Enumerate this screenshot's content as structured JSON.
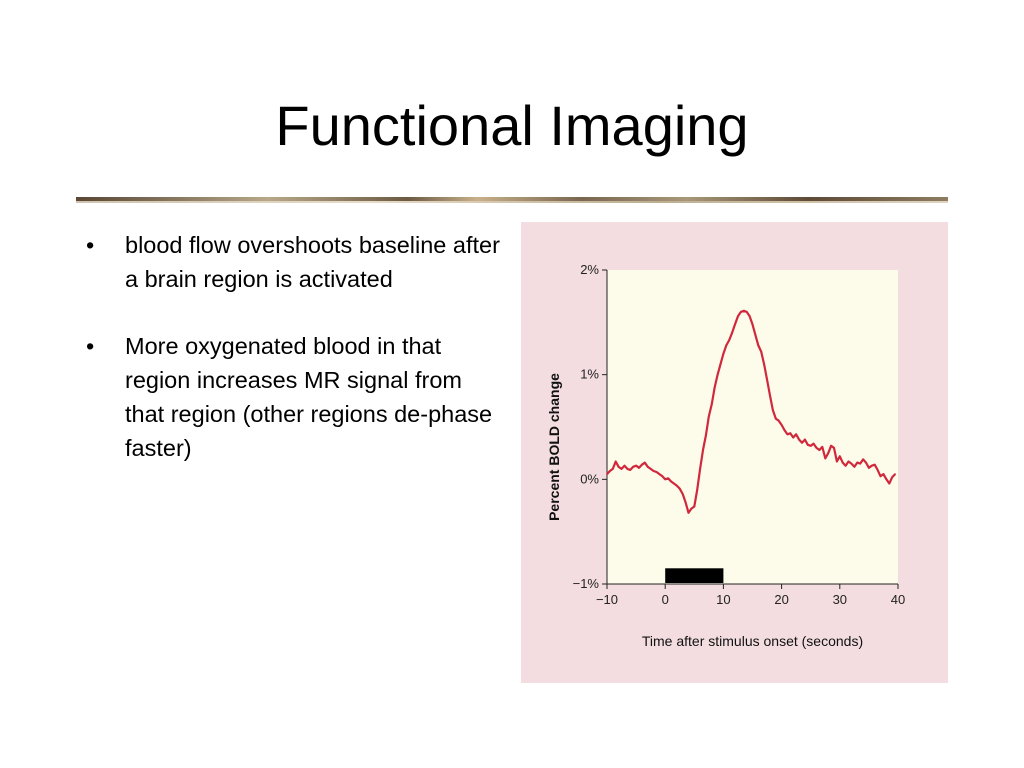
{
  "slide": {
    "title": "Functional Imaging",
    "bullets": [
      "blood flow overshoots baseline after a brain region is activated",
      "More oxygenated blood in that region increases MR signal from that region (other regions de-phase faster)"
    ],
    "bullet_glyph": "•"
  },
  "colors": {
    "line": "#d0283c",
    "plot_background": "#fdfbea",
    "panel_background": "#f3dde1",
    "stimulus_bar": "#000000"
  },
  "chart_data": {
    "type": "line",
    "xlabel": "Time after stimulus onset (seconds)",
    "ylabel": "Percent BOLD change",
    "xlim": [
      -10,
      40
    ],
    "ylim": [
      -1,
      2
    ],
    "xticks": [
      -10,
      0,
      10,
      20,
      30,
      40
    ],
    "xtick_labels": [
      "−10",
      "0",
      "10",
      "20",
      "30",
      "40"
    ],
    "yticks": [
      -1,
      0,
      1,
      2
    ],
    "ytick_labels": [
      "−1%",
      "0%",
      "1%",
      "2%"
    ],
    "grid": false,
    "stimulus": {
      "start": 0,
      "end": 10
    },
    "series": [
      {
        "x": [
          -10,
          -9.5,
          -9,
          -8.5,
          -8,
          -7.5,
          -7,
          -6.5,
          -6,
          -5.5,
          -5,
          -4.5,
          -4,
          -3.5,
          -3,
          -2.5,
          -2,
          -1.5,
          -1,
          -0.5,
          0,
          0.5,
          1,
          1.5,
          2,
          2.5,
          3,
          3.5,
          4,
          4.5,
          5,
          5.5,
          6,
          6.5,
          7,
          7.5,
          8,
          8.5,
          9,
          9.5,
          10,
          10.5,
          11,
          11.5,
          12,
          12.5,
          13,
          13.5,
          14,
          14.5,
          15,
          15.5,
          16,
          16.5,
          17,
          17.5,
          18,
          18.5,
          19,
          19.5,
          20,
          20.5,
          21,
          21.5,
          22,
          22.5,
          23,
          23.5,
          24,
          24.5,
          25,
          25.5,
          26,
          26.5,
          27,
          27.5,
          28,
          28.5,
          29,
          29.5,
          30,
          30.5,
          31,
          31.5,
          32,
          32.5,
          33,
          33.5,
          34,
          34.5,
          35,
          35.5,
          36,
          36.5,
          37,
          37.5,
          38,
          38.5,
          39,
          39.5
        ],
        "y": [
          0.05,
          0.08,
          0.1,
          0.17,
          0.12,
          0.1,
          0.13,
          0.1,
          0.09,
          0.12,
          0.13,
          0.11,
          0.14,
          0.16,
          0.12,
          0.1,
          0.08,
          0.07,
          0.05,
          0.03,
          0.0,
          0.01,
          -0.02,
          -0.04,
          -0.06,
          -0.09,
          -0.14,
          -0.22,
          -0.32,
          -0.28,
          -0.26,
          -0.1,
          0.1,
          0.28,
          0.42,
          0.6,
          0.72,
          0.88,
          1.0,
          1.1,
          1.2,
          1.28,
          1.33,
          1.4,
          1.48,
          1.56,
          1.6,
          1.61,
          1.6,
          1.56,
          1.48,
          1.38,
          1.28,
          1.22,
          1.1,
          0.95,
          0.8,
          0.66,
          0.58,
          0.56,
          0.52,
          0.47,
          0.43,
          0.44,
          0.4,
          0.43,
          0.38,
          0.35,
          0.38,
          0.33,
          0.32,
          0.34,
          0.3,
          0.28,
          0.31,
          0.2,
          0.25,
          0.32,
          0.3,
          0.17,
          0.22,
          0.16,
          0.13,
          0.17,
          0.15,
          0.12,
          0.16,
          0.15,
          0.19,
          0.16,
          0.11,
          0.13,
          0.14,
          0.09,
          0.03,
          0.05,
          0.0,
          -0.04,
          0.02,
          0.05
        ]
      }
    ]
  }
}
